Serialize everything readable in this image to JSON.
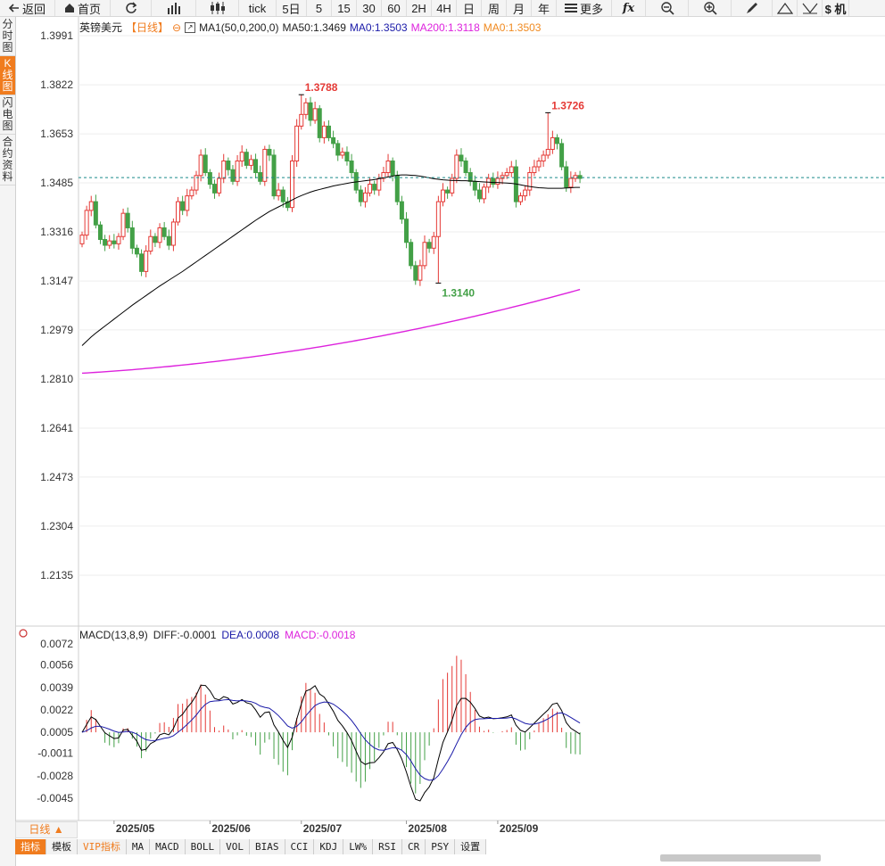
{
  "toolbar": {
    "items": [
      {
        "name": "back-button",
        "label": "返回",
        "icon": "back-arrow-icon",
        "w": 62
      },
      {
        "name": "home-button",
        "label": "首页",
        "icon": "home-icon",
        "w": 62
      },
      {
        "name": "refresh-button",
        "label": "",
        "icon": "refresh-icon",
        "w": 46
      },
      {
        "name": "chart-type-button",
        "label": "",
        "icon": "bar-chart-icon",
        "w": 50
      },
      {
        "name": "candle-type-button",
        "label": "",
        "icon": "candlestick-icon",
        "w": 48
      },
      {
        "name": "period-tick",
        "label": "tick",
        "w": 42
      },
      {
        "name": "period-5day",
        "label": "5日",
        "w": 34
      },
      {
        "name": "period-5",
        "label": "5",
        "w": 28
      },
      {
        "name": "period-15",
        "label": "15",
        "w": 28
      },
      {
        "name": "period-30",
        "label": "30",
        "w": 28
      },
      {
        "name": "period-60",
        "label": "60",
        "w": 28
      },
      {
        "name": "period-2h",
        "label": "2H",
        "w": 28
      },
      {
        "name": "period-4h",
        "label": "4H",
        "w": 28
      },
      {
        "name": "period-day",
        "label": "日",
        "w": 28
      },
      {
        "name": "period-week",
        "label": "周",
        "w": 28
      },
      {
        "name": "period-month",
        "label": "月",
        "w": 28
      },
      {
        "name": "period-year",
        "label": "年",
        "w": 28
      },
      {
        "name": "more-button",
        "label": "更多",
        "icon": "menu-icon",
        "w": 62
      },
      {
        "name": "formula-button",
        "label": "",
        "icon": "fx-icon",
        "w": 38
      },
      {
        "name": "zoom-out-button",
        "label": "",
        "icon": "zoom-out-icon",
        "w": 48
      },
      {
        "name": "zoom-in-button",
        "label": "",
        "icon": "zoom-in-icon",
        "w": 48
      },
      {
        "name": "draw-pen-button",
        "label": "",
        "icon": "pen-icon",
        "w": 46
      },
      {
        "name": "draw-triangle-button",
        "label": "",
        "icon": "triangle-icon",
        "w": 28
      },
      {
        "name": "draw-down-button",
        "label": "",
        "icon": "chevron-down-icon",
        "w": 28
      },
      {
        "name": "currency-button",
        "label": "$ 机",
        "icon": "dollar-icon",
        "w": 30
      }
    ]
  },
  "side_tabs": [
    {
      "label": "分时图",
      "active": false
    },
    {
      "label": "K线图",
      "active": true
    },
    {
      "label": "闪电图",
      "active": false
    },
    {
      "label": "合约资料",
      "active": false
    }
  ],
  "header": {
    "symbol": "英镑美元",
    "period": "【日线】",
    "ma_formula": "MA1(50,0,200,0)",
    "ma50": "MA50:1.3469",
    "ma0a": "MA0:1.3503",
    "ma200": "MA200:1.3118",
    "ma0b": "MA0:1.3503"
  },
  "macd_header": {
    "label": "MACD(13,8,9)",
    "diff": "DIFF:-0.0001",
    "dea": "DEA:0.0008",
    "macd": "MACD:-0.0018"
  },
  "colors": {
    "up": "#e53935",
    "down": "#43a047",
    "ma50": "#000000",
    "ma200": "#dd22dd",
    "dea": "#1a1aa8",
    "macd_label": "#dd22dd",
    "ma0": "#f08a20",
    "accent": "#f07c1e",
    "current": "#1a8a8a"
  },
  "chart_data": [
    {
      "type": "candlestick",
      "title": "英镑美元 日线",
      "yticks": [
        "1.3991",
        "1.3822",
        "1.3653",
        "1.3485",
        "1.3316",
        "1.3147",
        "1.2979",
        "1.2810",
        "1.2641",
        "1.2473",
        "1.2304",
        "1.2135"
      ],
      "ylim": [
        1.2135,
        1.3991
      ],
      "xticks": [
        {
          "i": 7,
          "label": "2025/05"
        },
        {
          "i": 28,
          "label": "2025/06"
        },
        {
          "i": 48,
          "label": "2025/07"
        },
        {
          "i": 71,
          "label": "2025/08"
        },
        {
          "i": 91,
          "label": "2025/09"
        }
      ],
      "current_price": 1.3503,
      "annotations": [
        {
          "i": 48,
          "value": 1.3788,
          "label": "1.3788",
          "kind": "high"
        },
        {
          "i": 78,
          "value": 1.314,
          "label": "1.3140",
          "kind": "low"
        },
        {
          "i": 102,
          "value": 1.3726,
          "label": "1.3726",
          "kind": "high"
        }
      ],
      "closes": [
        1.3305,
        1.339,
        1.342,
        1.334,
        1.329,
        1.327,
        1.3285,
        1.3275,
        1.33,
        1.338,
        1.333,
        1.326,
        1.324,
        1.318,
        1.325,
        1.33,
        1.328,
        1.333,
        1.33,
        1.327,
        1.335,
        1.342,
        1.339,
        1.344,
        1.346,
        1.351,
        1.358,
        1.352,
        1.348,
        1.345,
        1.35,
        1.356,
        1.353,
        1.349,
        1.356,
        1.359,
        1.3545,
        1.3565,
        1.352,
        1.349,
        1.36,
        1.358,
        1.344,
        1.346,
        1.342,
        1.34,
        1.356,
        1.368,
        1.372,
        1.376,
        1.37,
        1.374,
        1.364,
        1.368,
        1.364,
        1.362,
        1.358,
        1.359,
        1.356,
        1.352,
        1.346,
        1.342,
        1.345,
        1.348,
        1.346,
        1.35,
        1.352,
        1.356,
        1.351,
        1.342,
        1.336,
        1.328,
        1.32,
        1.315,
        1.32,
        1.328,
        1.326,
        1.33,
        1.342,
        1.346,
        1.345,
        1.35,
        1.358,
        1.356,
        1.352,
        1.349,
        1.346,
        1.343,
        1.347,
        1.35,
        1.348,
        1.35,
        1.351,
        1.352,
        1.354,
        1.342,
        1.344,
        1.346,
        1.352,
        1.354,
        1.356,
        1.358,
        1.36,
        1.364,
        1.362,
        1.354,
        1.347,
        1.35,
        1.351,
        1.35
      ],
      "ma50": [
        1.2925,
        1.294,
        1.2955,
        1.2968,
        1.298,
        1.2992,
        1.3004,
        1.3016,
        1.3028,
        1.304,
        1.3052,
        1.3064,
        1.3075,
        1.3086,
        1.3097,
        1.3108,
        1.3119,
        1.313,
        1.314,
        1.315,
        1.316,
        1.317,
        1.318,
        1.3191,
        1.3202,
        1.3213,
        1.3224,
        1.3235,
        1.3246,
        1.3257,
        1.3268,
        1.3279,
        1.329,
        1.3301,
        1.3312,
        1.3323,
        1.3334,
        1.3345,
        1.3356,
        1.3366,
        1.3376,
        1.3386,
        1.3394,
        1.3402,
        1.341,
        1.3418,
        1.3426,
        1.3434,
        1.3441,
        1.3447,
        1.3453,
        1.3458,
        1.3462,
        1.3466,
        1.347,
        1.3474,
        1.3477,
        1.348,
        1.3483,
        1.3486,
        1.3488,
        1.349,
        1.3492,
        1.3494,
        1.3496,
        1.3499,
        1.3502,
        1.3505,
        1.3508,
        1.3511,
        1.3512,
        1.3512,
        1.3511,
        1.351,
        1.3508,
        1.3505,
        1.3502,
        1.3499,
        1.3497,
        1.3495,
        1.3494,
        1.3493,
        1.3493,
        1.3492,
        1.3492,
        1.3491,
        1.349,
        1.3489,
        1.3488,
        1.3487,
        1.3486,
        1.3486,
        1.3485,
        1.3484,
        1.3483,
        1.3481,
        1.3478,
        1.3475,
        1.3472,
        1.347,
        1.3468,
        1.3467,
        1.3466,
        1.3466,
        1.3466,
        1.3466,
        1.3467,
        1.3468,
        1.3469,
        1.3469
      ],
      "ma200_start": 1.283,
      "ma200_end": 1.3118
    },
    {
      "type": "bar+line",
      "title": "MACD(13,8,9)",
      "yticks": [
        "0.0072",
        "0.0056",
        "0.0039",
        "0.0022",
        "0.0005",
        "-0.0011",
        "-0.0028",
        "-0.0045"
      ],
      "ylim": [
        -0.0045,
        0.0072
      ]
    }
  ],
  "period_button": "日线 ▲",
  "bottom_tabs": [
    "指标",
    "模板",
    "VIP指标",
    "MA",
    "MACD",
    "BOLL",
    "VOL",
    "BIAS",
    "CCI",
    "KDJ",
    "LW%",
    "RSI",
    "CR",
    "PSY",
    "设置"
  ]
}
